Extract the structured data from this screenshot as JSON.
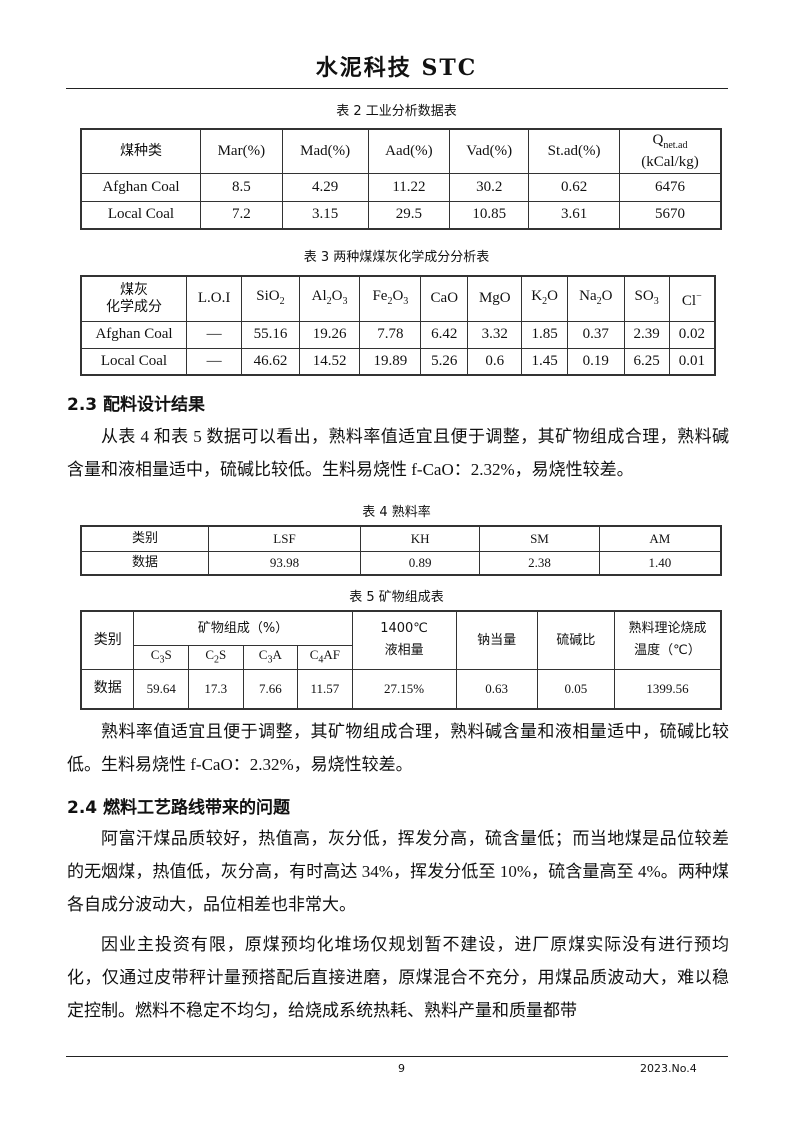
{
  "header": {
    "title": "水泥科技  STC"
  },
  "table2": {
    "caption": "表 2  工业分析数据表",
    "headers": [
      "煤种类",
      "Mar(%)",
      "Mad(%)",
      "Aad(%)",
      "Vad(%)",
      "St.ad(%)"
    ],
    "q_header": {
      "main": "Q",
      "sub": "net.ad",
      "unit": "(kCal/kg)"
    },
    "rows": [
      [
        "Afghan Coal",
        "8.5",
        "4.29",
        "11.22",
        "30.2",
        "0.62",
        "6476"
      ],
      [
        "Local Coal",
        "7.2",
        "3.15",
        "29.5",
        "10.85",
        "3.61",
        "5670"
      ]
    ]
  },
  "table3": {
    "caption": "表 3    两种煤煤灰化学成分分析表",
    "first_header": [
      "煤灰",
      "化学成分"
    ],
    "headers": [
      {
        "main": "L.O.I"
      },
      {
        "main": "SiO",
        "sub": "2"
      },
      {
        "main": "Al",
        "sub": "2",
        "main2": "O",
        "sub2": "3"
      },
      {
        "main": "Fe",
        "sub": "2",
        "main2": "O",
        "sub2": "3"
      },
      {
        "main": "CaO"
      },
      {
        "main": "MgO"
      },
      {
        "main": "K",
        "sub": "2",
        "main2": "O"
      },
      {
        "main": "Na",
        "sub": "2",
        "main2": "O"
      },
      {
        "main": "SO",
        "sub": "3"
      },
      {
        "main": "Cl",
        "sup": "−"
      }
    ],
    "rows": [
      [
        "Afghan Coal",
        "—",
        "55.16",
        "19.26",
        "7.78",
        "6.42",
        "3.32",
        "1.85",
        "0.37",
        "2.39",
        "0.02"
      ],
      [
        "Local Coal",
        "—",
        "46.62",
        "14.52",
        "19.89",
        "5.26",
        "0.6",
        "1.45",
        "0.19",
        "6.25",
        "0.01"
      ]
    ]
  },
  "section23": {
    "heading": "2.3 配料设计结果",
    "paragraph": "从表 4 和表 5 数据可以看出，熟料率值适宜且便于调整，其矿物组成合理，熟料碱含量和液相量适中，硫碱比较低。生料易烧性 f-CaO：2.32%，易烧性较差。"
  },
  "table4": {
    "caption": "表 4    熟料率",
    "headers": [
      "类别",
      "LSF",
      "KH",
      "SM",
      "AM"
    ],
    "row": [
      "数据",
      "93.98",
      "0.89",
      "2.38",
      "1.40"
    ]
  },
  "table5": {
    "caption": "表 5  矿物组成表",
    "col_category": "类别",
    "group_header": "矿物组成（%）",
    "minerals": [
      {
        "a": "C",
        "s": "3",
        "b": "S"
      },
      {
        "a": "C",
        "s": "2",
        "b": "S"
      },
      {
        "a": "C",
        "s": "3",
        "b": "A"
      },
      {
        "a": "C",
        "s": "4",
        "b": "AF"
      }
    ],
    "liquid_header": [
      "1400℃",
      "液相量"
    ],
    "sodium_header": "钠当量",
    "sulfur_header": "硫碱比",
    "temp_header": [
      "熟料理论烧成",
      "温度（℃）"
    ],
    "row": [
      "数据",
      "59.64",
      "17.3",
      "7.66",
      "11.57",
      "27.15%",
      "0.63",
      "0.05",
      "1399.56"
    ]
  },
  "paragraph_after_t5": "熟料率值适宜且便于调整，其矿物组成合理，熟料碱含量和液相量适中，硫碱比较低。生料易烧性 f-CaO：2.32%，易烧性较差。",
  "section24": {
    "heading": "2.4 燃料工艺路线带来的问题",
    "paragraphs": [
      "阿富汗煤品质较好，热值高，灰分低，挥发分高，硫含量低；而当地煤是品位较差的无烟煤，热值低，灰分高，有时高达 34%，挥发分低至 10%，硫含量高至 4%。两种煤各自成分波动大，品位相差也非常大。",
      "因业主投资有限，原煤预均化堆场仅规划暂不建设，进厂原煤实际没有进行预均化，仅通过皮带秤计量预搭配后直接进磨，原煤混合不充分，用煤品质波动大，难以稳定控制。燃料不稳定不均匀，给烧成系统热耗、熟料产量和质量都带"
    ]
  },
  "footer": {
    "page": "9",
    "issue": "2023.No.4"
  }
}
